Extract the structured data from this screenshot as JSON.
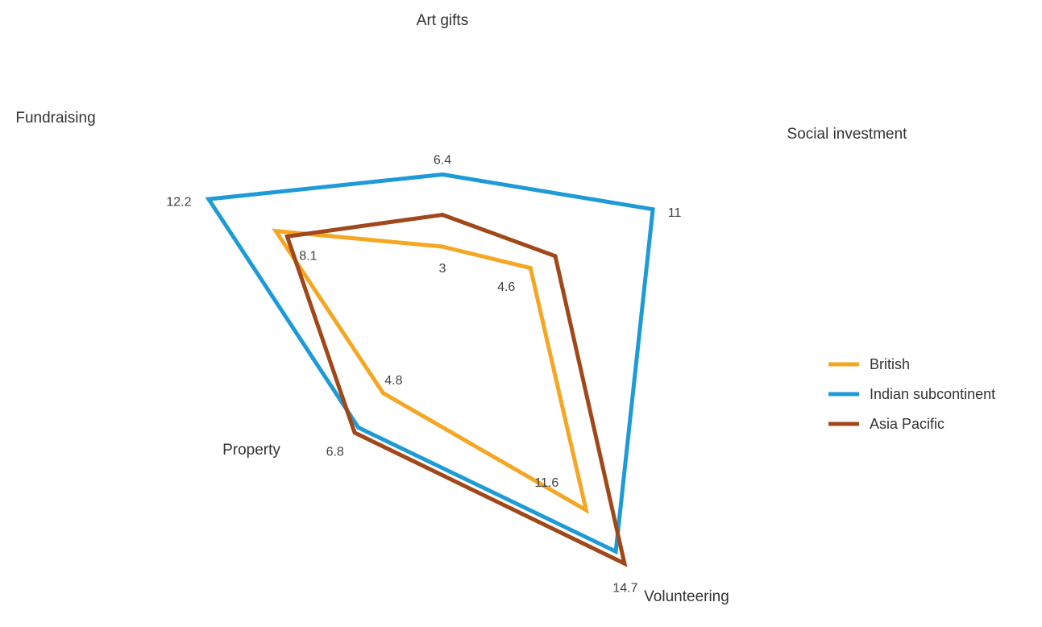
{
  "chart_data": {
    "type": "radar",
    "title": "",
    "axes": [
      "Art gifts",
      "Social investment",
      "Volunteering",
      "Property",
      "Fundraising"
    ],
    "series": [
      {
        "name": "British",
        "color": "#f5a623",
        "values": [
          3,
          4.6,
          11.6,
          4.8,
          8.7
        ]
      },
      {
        "name": "Indian subcontinent",
        "color": "#1e9bd7",
        "values": [
          6.4,
          11,
          14.0,
          6.8,
          12.2
        ]
      },
      {
        "name": "Asia Pacific",
        "color": "#a0481a",
        "values": [
          4.5,
          5.9,
          14.7,
          7.1,
          8.1
        ]
      }
    ],
    "data_labels": [
      {
        "text": "6.4",
        "axis": "Art gifts",
        "series": "Indian subcontinent"
      },
      {
        "text": "3",
        "axis": "Art gifts",
        "series": "British"
      },
      {
        "text": "11",
        "axis": "Social investment",
        "series": "Indian subcontinent"
      },
      {
        "text": "4.6",
        "axis": "Social investment",
        "series": "British"
      },
      {
        "text": "14.7",
        "axis": "Volunteering",
        "series": "Asia Pacific"
      },
      {
        "text": "11.6",
        "axis": "Volunteering",
        "series": "British"
      },
      {
        "text": "6.8",
        "axis": "Property",
        "series": "Indian subcontinent"
      },
      {
        "text": "4.8",
        "axis": "Property",
        "series": "British"
      },
      {
        "text": "12.2",
        "axis": "Fundraising",
        "series": "Indian subcontinent"
      },
      {
        "text": "8.1",
        "axis": "Fundraising",
        "series": "Asia Pacific"
      }
    ],
    "legend": "right",
    "grid": false
  }
}
